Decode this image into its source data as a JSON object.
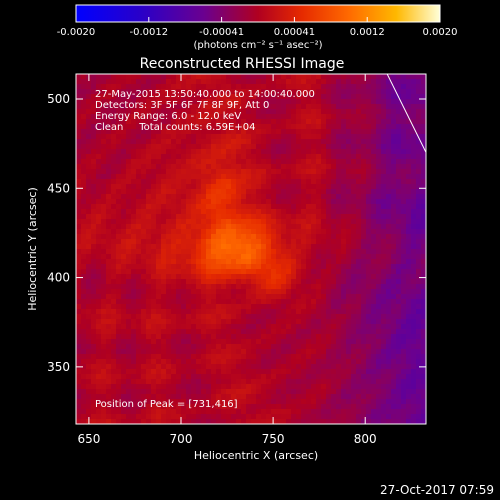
{
  "chart_data": {
    "type": "heatmap",
    "title": "Reconstructed RHESSI Image",
    "xlabel": "Heliocentric X (arcsec)",
    "ylabel": "Heliocentric Y (arcsec)",
    "xlim": [
      643,
      833
    ],
    "ylim": [
      318,
      514
    ],
    "x_ticks": [
      650,
      700,
      750,
      800
    ],
    "y_ticks": [
      350,
      400,
      450,
      500
    ],
    "colorbar": {
      "range": [
        -0.002,
        0.002
      ],
      "ticks": [
        "-0.0020",
        "-0.0012",
        "-0.00041",
        "0.00041",
        "0.0012",
        "0.0020"
      ],
      "label": "(photons cm⁻² s⁻¹ asec⁻²)"
    },
    "annotations": [
      "27-May-2015 13:50:40.000 to 14:00:40.000",
      "Detectors: 3F 5F 6F 7F 8F 9F, Att 0",
      "Energy Range: 6.0 - 12.0 keV",
      "Clean     Total counts: 6.59E+04"
    ],
    "peak_text": "Position of Peak = [731,416]",
    "peak": [
      731,
      416
    ],
    "limb_line": [
      [
        810,
        518
      ],
      [
        834,
        468
      ]
    ],
    "grid": false,
    "emission": [
      {
        "x": 731,
        "y": 416,
        "sx": 15,
        "sy": 11,
        "amp": 0.00095
      },
      {
        "x": 722,
        "y": 445,
        "sx": 8,
        "sy": 15,
        "amp": 0.0004
      },
      {
        "x": 752,
        "y": 401,
        "sx": 10,
        "sy": 10,
        "amp": 0.0004
      },
      {
        "x": 702,
        "y": 440,
        "sx": 22,
        "sy": 30,
        "amp": 0.00025
      }
    ]
  },
  "footer": {
    "timestamp": "27-Oct-2017 07:59"
  }
}
